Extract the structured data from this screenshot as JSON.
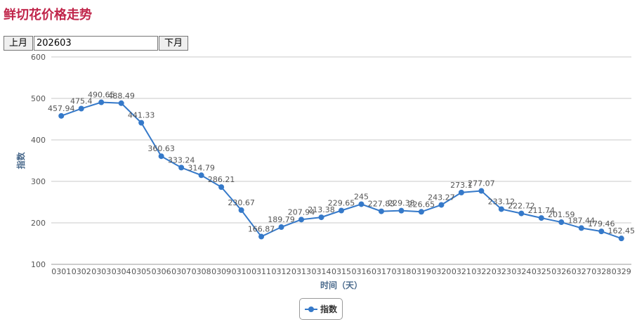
{
  "page": {
    "title": "鲜切花价格走势"
  },
  "controls": {
    "prev_label": "上月",
    "next_label": "下月",
    "month_value": "202603"
  },
  "colors": {
    "title": "#c0254a",
    "series": "#3579c9",
    "axis_title": "#4a6a8c",
    "grid": "#c8c8c8",
    "label": "#555555"
  },
  "chart_data": {
    "type": "line",
    "title": "",
    "xlabel": "时间（天）",
    "ylabel": "指数",
    "ylim": [
      100,
      600
    ],
    "yticks": [
      100,
      200,
      300,
      400,
      500,
      600
    ],
    "grid": true,
    "legend": "bottom-center",
    "categories": [
      "0301",
      "0302",
      "0303",
      "0304",
      "0305",
      "0306",
      "0307",
      "0308",
      "0309",
      "0310",
      "0311",
      "0312",
      "0313",
      "0314",
      "0315",
      "0316",
      "0317",
      "0318",
      "0319",
      "0320",
      "0321",
      "0322",
      "0323",
      "0324",
      "0325",
      "0326",
      "0327",
      "0328",
      "0329"
    ],
    "series": [
      {
        "name": "指数",
        "values": [
          457.94,
          475.4,
          490.65,
          488.49,
          441.33,
          360.63,
          333.24,
          314.79,
          286.21,
          230.67,
          166.87,
          189.79,
          207.94,
          213.38,
          229.65,
          245,
          227.83,
          229.38,
          226.65,
          243.27,
          273.1,
          277.07,
          233.12,
          222.72,
          211.74,
          201.59,
          187.44,
          179.46,
          162.45
        ]
      }
    ]
  }
}
